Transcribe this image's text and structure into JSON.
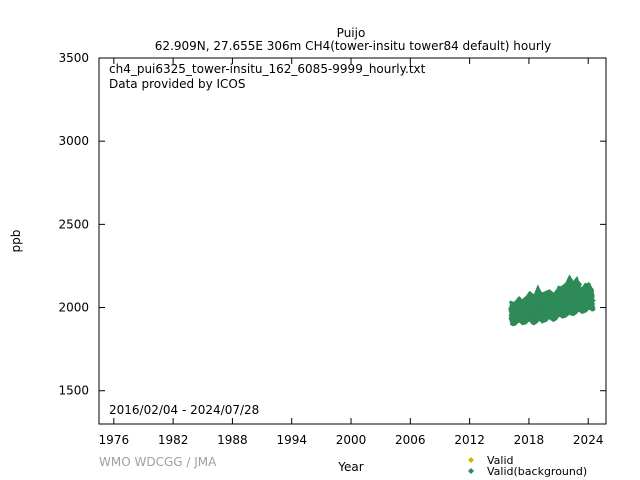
{
  "chart_data": {
    "type": "scatter",
    "title": "Puijo",
    "subtitle": "62.909N, 27.655E 306m    CH4(tower-insitu tower84 default) hourly",
    "file_label": "ch4_pui6325_tower-insitu_162_6085-9999_hourly.txt",
    "provider_label": "Data provided by ICOS",
    "date_range_label": "2016/02/04 - 2024/07/28",
    "xlabel": "Year",
    "ylabel": "ppb",
    "xlim": [
      1974.5,
      2025.8
    ],
    "ylim": [
      1300,
      3500
    ],
    "x_ticks": [
      1976,
      1982,
      1988,
      1994,
      2000,
      2006,
      2012,
      2018,
      2024
    ],
    "y_ticks": [
      1500,
      2000,
      2500,
      3000,
      3500
    ],
    "grid": false,
    "legend_position": "bottom-right",
    "series": [
      {
        "name": "Valid",
        "color": "#e0b000",
        "marker": "diamond",
        "points": []
      },
      {
        "name": "Valid(background)",
        "color": "#2e8b57",
        "marker": "diamond",
        "envelope": [
          {
            "x": 2016.1,
            "low": 1895,
            "high": 2040
          },
          {
            "x": 2016.5,
            "low": 1900,
            "high": 2035
          },
          {
            "x": 2016.9,
            "low": 1910,
            "high": 2060
          },
          {
            "x": 2017.3,
            "low": 1905,
            "high": 2050
          },
          {
            "x": 2017.7,
            "low": 1910,
            "high": 2070
          },
          {
            "x": 2018.1,
            "low": 1915,
            "high": 2100
          },
          {
            "x": 2018.5,
            "low": 1905,
            "high": 2080
          },
          {
            "x": 2018.9,
            "low": 1920,
            "high": 2140
          },
          {
            "x": 2019.3,
            "low": 1915,
            "high": 2090
          },
          {
            "x": 2019.7,
            "low": 1925,
            "high": 2100
          },
          {
            "x": 2020.1,
            "low": 1930,
            "high": 2110
          },
          {
            "x": 2020.5,
            "low": 1925,
            "high": 2090
          },
          {
            "x": 2020.9,
            "low": 1940,
            "high": 2120
          },
          {
            "x": 2021.3,
            "low": 1945,
            "high": 2130
          },
          {
            "x": 2021.7,
            "low": 1950,
            "high": 2150
          },
          {
            "x": 2022.1,
            "low": 1965,
            "high": 2200
          },
          {
            "x": 2022.5,
            "low": 1960,
            "high": 2160
          },
          {
            "x": 2022.9,
            "low": 1975,
            "high": 2190
          },
          {
            "x": 2023.3,
            "low": 1970,
            "high": 2120
          },
          {
            "x": 2023.7,
            "low": 1980,
            "high": 2150
          },
          {
            "x": 2024.1,
            "low": 1985,
            "high": 2140
          },
          {
            "x": 2024.57,
            "low": 1990,
            "high": 2110
          }
        ],
        "trend": [
          {
            "x": 2016.1,
            "y": 1955
          },
          {
            "x": 2018.0,
            "y": 1970
          },
          {
            "x": 2020.0,
            "y": 1990
          },
          {
            "x": 2022.0,
            "y": 2030
          },
          {
            "x": 2024.57,
            "y": 2055
          }
        ],
        "seasonal_amplitude": 35
      }
    ]
  },
  "watermark": "WMO WDCGG / JMA",
  "legend": {
    "items": [
      {
        "label": "Valid",
        "color": "#e0b000"
      },
      {
        "label": "Valid(background)",
        "color": "#2e8b57"
      }
    ]
  }
}
